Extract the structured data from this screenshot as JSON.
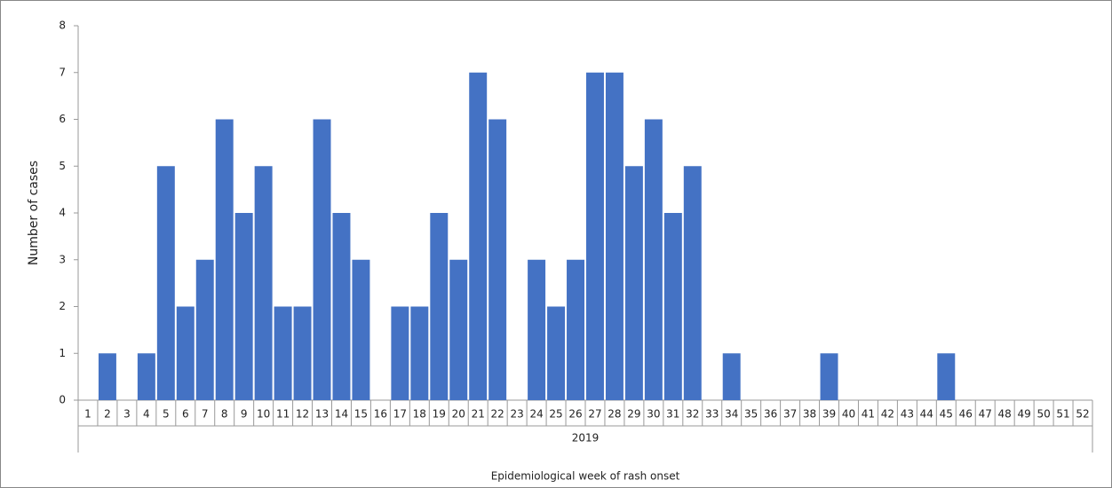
{
  "chart_data": {
    "type": "bar",
    "y_label": "Number  of cases",
    "x_group_label": "2019",
    "x_label": "Epidemiological week of rash onset",
    "categories": [
      "1",
      "2",
      "3",
      "4",
      "5",
      "6",
      "7",
      "8",
      "9",
      "10",
      "11",
      "12",
      "13",
      "14",
      "15",
      "16",
      "17",
      "18",
      "19",
      "20",
      "21",
      "22",
      "23",
      "24",
      "25",
      "26",
      "27",
      "28",
      "29",
      "30",
      "31",
      "32",
      "33",
      "34",
      "35",
      "36",
      "37",
      "38",
      "39",
      "40",
      "41",
      "42",
      "43",
      "44",
      "45",
      "46",
      "47",
      "48",
      "49",
      "50",
      "51",
      "52"
    ],
    "values": [
      0,
      1,
      0,
      1,
      5,
      2,
      3,
      6,
      4,
      5,
      2,
      2,
      6,
      4,
      3,
      0,
      2,
      2,
      4,
      3,
      7,
      6,
      0,
      3,
      2,
      3,
      7,
      7,
      5,
      6,
      4,
      5,
      0,
      1,
      0,
      0,
      0,
      0,
      1,
      0,
      0,
      0,
      0,
      0,
      1,
      0,
      0,
      0,
      0,
      0,
      0,
      0
    ],
    "color": "#4472c4",
    "ylim": [
      0,
      8
    ],
    "yticks": [
      0,
      1,
      2,
      3,
      4,
      5,
      6,
      7,
      8
    ],
    "grid": false
  }
}
